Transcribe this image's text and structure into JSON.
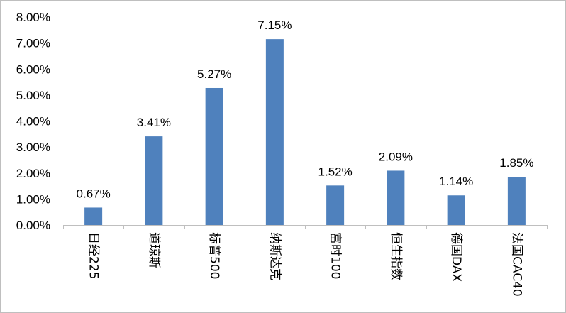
{
  "chart_data": {
    "type": "bar",
    "title": "",
    "xlabel": "",
    "ylabel": "",
    "categories": [
      "日经225",
      "道琼斯",
      "标普500",
      "纳斯达克",
      "富时100",
      "恒生指数",
      "德国DAX",
      "法国CAC40"
    ],
    "values": [
      0.67,
      3.41,
      5.27,
      7.15,
      1.52,
      2.09,
      1.14,
      1.85
    ],
    "data_labels": [
      "0.67%",
      "3.41%",
      "5.27%",
      "7.15%",
      "1.52%",
      "2.09%",
      "1.14%",
      "1.85%"
    ],
    "ylim": [
      0,
      8
    ],
    "yticks": [
      "0.00%",
      "1.00%",
      "2.00%",
      "3.00%",
      "4.00%",
      "5.00%",
      "6.00%",
      "7.00%",
      "8.00%"
    ],
    "grid": false,
    "legend": "none",
    "bar_color": "#4f81bd",
    "axis_color": "#bfbfbf"
  }
}
